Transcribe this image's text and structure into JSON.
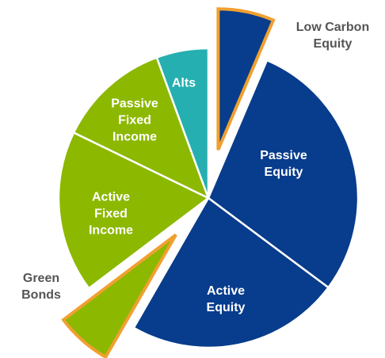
{
  "chart_data": {
    "type": "pie",
    "categories": [
      "Low Carbon Equity",
      "Passive Equity",
      "Active Equity",
      "Green Bonds",
      "Active Fixed Income",
      "Passive Fixed Income",
      "Alts"
    ],
    "values": [
      6.4,
      28.8,
      23.1,
      6.4,
      17.5,
      12.2,
      5.6
    ],
    "colors": [
      "#083c8c",
      "#083c8c",
      "#083c8c",
      "#8cb800",
      "#8cb800",
      "#8cb800",
      "#26afb0"
    ],
    "explode": [
      true,
      false,
      false,
      true,
      false,
      false,
      false
    ],
    "explode_edge_color": "#f0a030"
  }
}
